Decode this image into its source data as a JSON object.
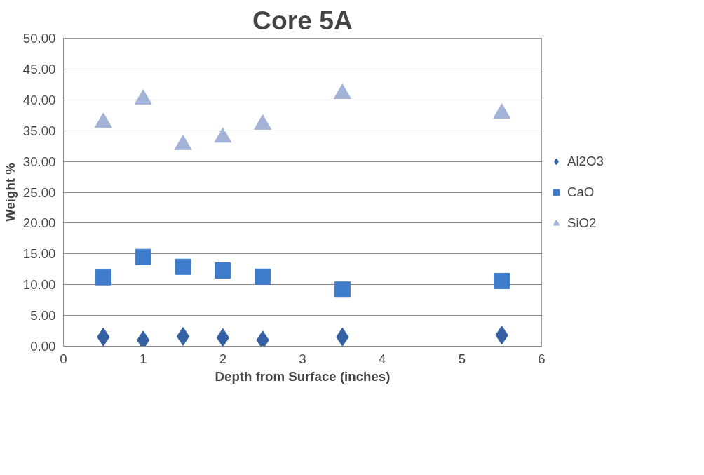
{
  "chart_data": {
    "type": "scatter",
    "title": "Core 5A",
    "xlabel": "Depth from Surface (inches)",
    "ylabel": "Weight %",
    "x": [
      0.5,
      1,
      1.5,
      2,
      2.5,
      3.5,
      5.5
    ],
    "series": [
      {
        "name": "Al2O3",
        "color": "#3560a4",
        "marker": "diamond",
        "values": [
          1.5,
          1.0,
          1.6,
          1.4,
          1.0,
          1.5,
          1.8
        ]
      },
      {
        "name": "CaO",
        "color": "#3f7ccb",
        "marker": "square",
        "values": [
          11.2,
          14.5,
          12.9,
          12.3,
          11.3,
          9.2,
          10.6
        ]
      },
      {
        "name": "SiO2",
        "color": "#a3b3d8",
        "marker": "triangle",
        "values": [
          36.3,
          40.1,
          32.7,
          33.9,
          36.0,
          41.0,
          37.8
        ]
      }
    ],
    "xlim": [
      0,
      6
    ],
    "xticks": [
      0,
      1,
      2,
      3,
      4,
      5,
      6
    ],
    "ylim": [
      0,
      50
    ],
    "yticks": [
      {
        "value": 0,
        "label": "0.00"
      },
      {
        "value": 5,
        "label": "5.00"
      },
      {
        "value": 10,
        "label": "10.00"
      },
      {
        "value": 15,
        "label": "15.00"
      },
      {
        "value": 20,
        "label": "20.00"
      },
      {
        "value": 25,
        "label": "25.00"
      },
      {
        "value": 30,
        "label": "30.00"
      },
      {
        "value": 35,
        "label": "35.00"
      },
      {
        "value": 40,
        "label": "40.00"
      },
      {
        "value": 45,
        "label": "45.00"
      },
      {
        "value": 50,
        "label": "50.00"
      }
    ],
    "grid": "y",
    "legend": "right"
  }
}
